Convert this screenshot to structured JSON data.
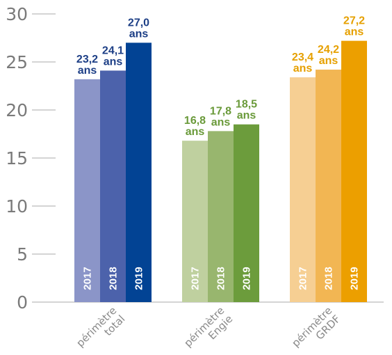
{
  "chart_data": {
    "type": "bar",
    "ylim": [
      0,
      30
    ],
    "yticks": [
      "0",
      "5",
      "10",
      "15",
      "20",
      "25",
      "30"
    ],
    "years": [
      "2017",
      "2018",
      "2019"
    ],
    "unit": "ans",
    "groups": [
      {
        "label_lines": [
          "périmètre",
          "total"
        ],
        "values": [
          23.2,
          24.1,
          27.0
        ],
        "value_labels": [
          "23,2",
          "24,1",
          "27,0"
        ],
        "colors": [
          "#8b95c8",
          "#4c62ab",
          "#024394"
        ],
        "label_color": "#1d3f86"
      },
      {
        "label_lines": [
          "périmètre",
          "Engie"
        ],
        "values": [
          16.8,
          17.8,
          18.5
        ],
        "value_labels": [
          "16,8",
          "17,8",
          "18,5"
        ],
        "colors": [
          "#bfd09f",
          "#98b66e",
          "#6c9c3c"
        ],
        "label_color": "#6a9a3a"
      },
      {
        "label_lines": [
          "périmètre",
          "GRDF"
        ],
        "values": [
          23.4,
          24.2,
          27.2
        ],
        "value_labels": [
          "23,4",
          "24,2",
          "27,2"
        ],
        "colors": [
          "#f6cf93",
          "#f2b653",
          "#ec9f00"
        ],
        "label_color": "#e6a000"
      }
    ]
  }
}
